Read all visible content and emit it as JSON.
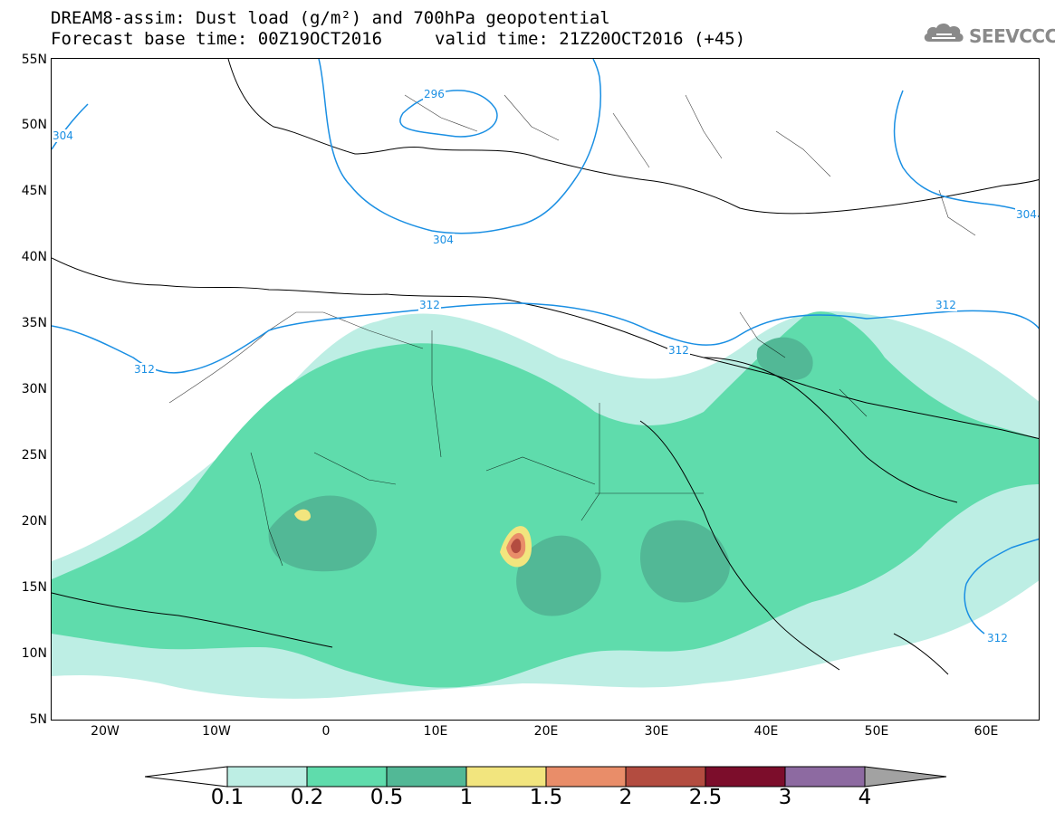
{
  "title": {
    "line1": "DREAM8-assim: Dust load (g/m²) and 700hPa geopotential",
    "line2": "Forecast base time: 00Z19OCT2016",
    "valid": "valid time: 21Z20OCT2016 (+45)"
  },
  "logo": {
    "text": "SEEVCCC",
    "icon": "cloud-icon"
  },
  "latitude_labels": [
    "55N",
    "50N",
    "45N",
    "40N",
    "35N",
    "30N",
    "25N",
    "20N",
    "15N",
    "10N",
    "5N"
  ],
  "longitude_labels": [
    "20W",
    "10W",
    "0",
    "10E",
    "20E",
    "30E",
    "40E",
    "50E",
    "60E"
  ],
  "contour_labels": [
    "296",
    "304",
    "304",
    "304",
    "312",
    "312",
    "312",
    "312",
    "312"
  ],
  "colorbar": {
    "labels": [
      "0.1",
      "0.2",
      "0.5",
      "1",
      "1.5",
      "2",
      "2.5",
      "3",
      "4"
    ],
    "colors": [
      "#ffffff",
      "#bdeee4",
      "#5fdcac",
      "#52b896",
      "#f2e57e",
      "#e98d69",
      "#b34c40",
      "#7c0d2b",
      "#8d6aa1",
      "#a2a2a2"
    ]
  },
  "map_colors": {
    "contour": "#1a8fe3",
    "coast": "#000000"
  }
}
